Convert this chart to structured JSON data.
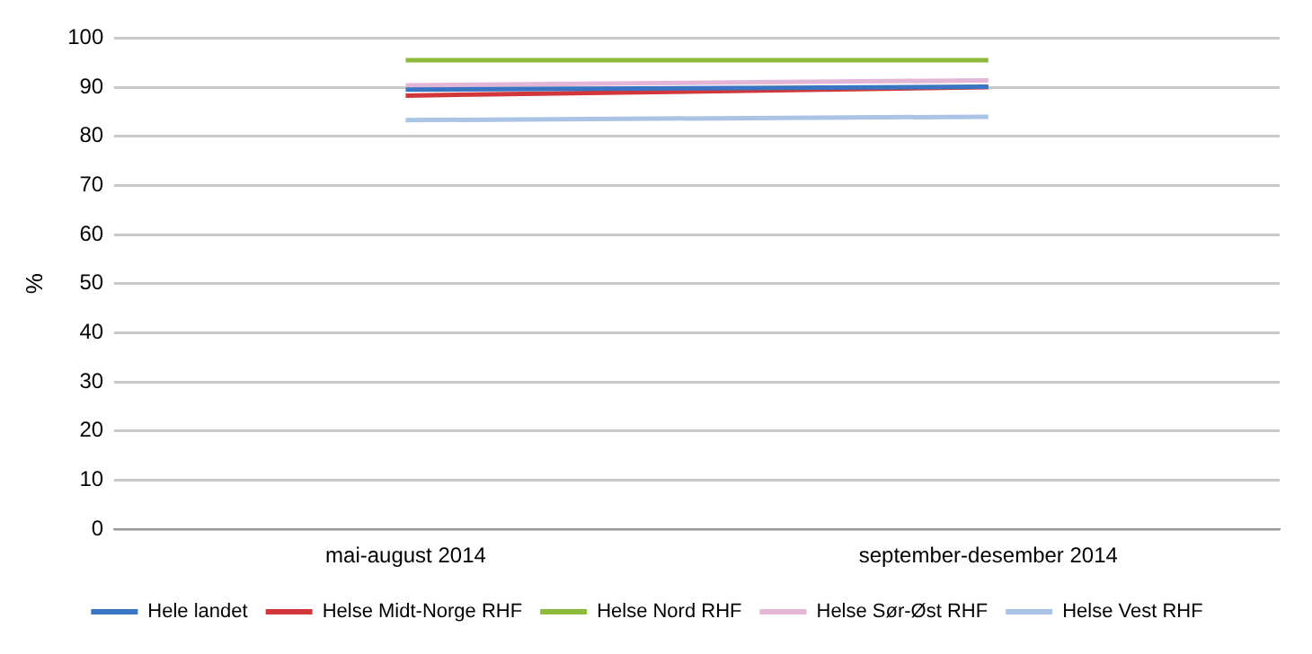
{
  "chart_data": {
    "type": "line",
    "ylabel": "%",
    "categories": [
      "mai-august 2014",
      "september-desember 2014"
    ],
    "series": [
      {
        "name": "Hele landet",
        "color": "#3a75c4",
        "values": [
          89.5,
          90.1
        ]
      },
      {
        "name": "Helse Midt-Norge RHF",
        "color": "#d0363a",
        "values": [
          88.3,
          90.0
        ]
      },
      {
        "name": "Helse Nord RHF",
        "color": "#8cbb3c",
        "values": [
          95.5,
          95.5
        ]
      },
      {
        "name": "Helse Sør-Øst RHF",
        "color": "#e3b5d6",
        "values": [
          90.4,
          91.4
        ]
      },
      {
        "name": "Helse Vest RHF",
        "color": "#a9c4e4",
        "values": [
          83.3,
          84.0
        ]
      }
    ],
    "ylim": [
      0,
      100
    ],
    "yticks": [
      0,
      10,
      20,
      30,
      40,
      50,
      60,
      70,
      80,
      90,
      100
    ],
    "grid": "y",
    "legend": "bottom",
    "marker": "none",
    "line_style": "solid"
  }
}
